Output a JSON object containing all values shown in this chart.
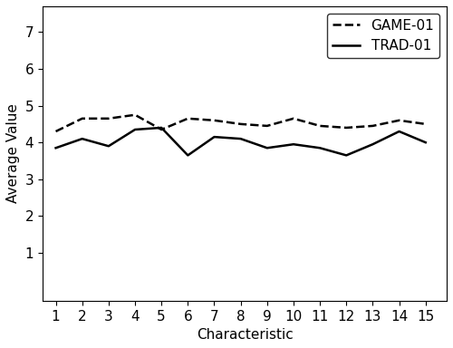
{
  "x": [
    1,
    2,
    3,
    4,
    5,
    6,
    7,
    8,
    9,
    10,
    11,
    12,
    13,
    14,
    15
  ],
  "game01": [
    4.3,
    4.65,
    4.65,
    4.75,
    4.35,
    4.65,
    4.6,
    4.5,
    4.45,
    4.65,
    4.45,
    4.4,
    4.45,
    4.6,
    4.5
  ],
  "trad01": [
    3.85,
    4.1,
    3.9,
    4.35,
    4.4,
    3.65,
    4.15,
    4.1,
    3.85,
    3.95,
    3.85,
    3.65,
    3.95,
    4.3,
    4.0
  ],
  "game01_label": "GAME-01",
  "trad01_label": "TRAD-01",
  "xlabel": "Characteristic",
  "ylabel": "Average Value",
  "ylim": [
    -0.3,
    7.7
  ],
  "yticks": [
    1,
    2,
    3,
    4,
    5,
    6,
    7
  ],
  "xlim": [
    0.5,
    15.8
  ],
  "line_color": "#000000",
  "background_color": "#ffffff",
  "linewidth": 1.8,
  "legend_loc": "upper right",
  "fontsize": 11
}
